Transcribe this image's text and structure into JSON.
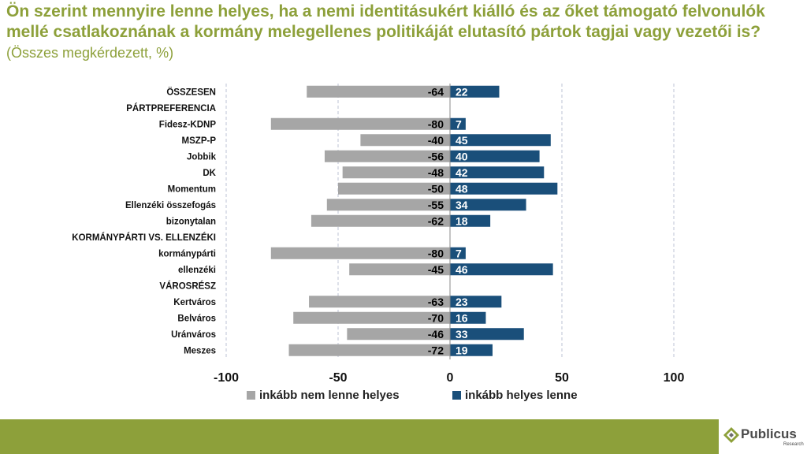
{
  "title": "Ön szerint mennyire lenne helyes, ha a nemi identitásukért kiálló és az őket támogató felvonulók mellé csatlakoznának a kormány melegellenes politikáját elutasító pártok tagjai vagy vezetői is?",
  "subtitle": "(Összes megkérdezett, %)",
  "chart_data": {
    "type": "bar",
    "orientation": "horizontal",
    "stacked": "diverging",
    "title": "Ön szerint mennyire lenne helyes, ha a nemi identitásukért kiálló és az őket támogató felvonulók mellé csatlakoznának a kormány melegellenes politikáját elutasító pártok tagjai vagy vezetői is?",
    "subtitle": "(Összes megkérdezett, %)",
    "categories": [
      "ÖSSZESEN",
      "PÁRTPREFERENCIA",
      "Fidesz-KDNP",
      "MSZP-P",
      "Jobbik",
      "DK",
      "Momentum",
      "Ellenzéki összefogás",
      "bizonytalan",
      "KORMÁNYPÁRTI VS. ELLENZÉKI",
      "kormánypárti",
      "ellenzéki",
      "VÁROSRÉSZ",
      "Kertváros",
      "Belváros",
      "Uránváros",
      "Meszes"
    ],
    "series": [
      {
        "name": "inkább nem lenne helyes",
        "color": "#a6a6a6",
        "values": [
          -64,
          null,
          -80,
          -40,
          -56,
          -48,
          -50,
          -55,
          -62,
          null,
          -80,
          -45,
          null,
          -63,
          -70,
          -46,
          -72
        ]
      },
      {
        "name": "inkább helyes lenne",
        "color": "#1a4f7a",
        "values": [
          22,
          null,
          7,
          45,
          40,
          42,
          48,
          34,
          18,
          null,
          7,
          46,
          null,
          23,
          16,
          33,
          19
        ]
      }
    ],
    "xlim": [
      -100,
      100
    ],
    "xticks": [
      -100,
      -50,
      0,
      50,
      100
    ],
    "xtick_labels": [
      "-100",
      "-50",
      "0",
      "50",
      "100"
    ],
    "grid": true,
    "legend_position": "bottom"
  },
  "brand": {
    "name": "Publicus",
    "tagline": "Research"
  }
}
